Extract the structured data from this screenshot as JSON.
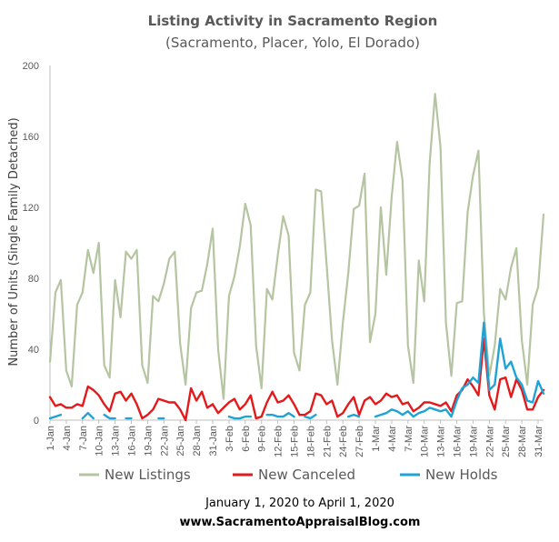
{
  "chart_data": {
    "type": "line",
    "title": "Listing Activity in Sacramento Region",
    "subtitle": "(Sacramento, Placer, Yolo, El Dorado)",
    "ylabel": "Number of Units (Single Family Detached)",
    "xlabel": "January 1, 2020 to April 1, 2020",
    "ylim": [
      0,
      200
    ],
    "yticks": [
      0,
      40,
      80,
      120,
      160,
      200
    ],
    "grid": false,
    "legend_position": "bottom",
    "x_tick_labels": [
      "1-Jan",
      "4-Jan",
      "7-Jan",
      "10-Jan",
      "13-Jan",
      "16-Jan",
      "19-Jan",
      "22-Jan",
      "25-Jan",
      "28-Jan",
      "31-Jan",
      "3-Feb",
      "6-Feb",
      "9-Feb",
      "12-Feb",
      "15-Feb",
      "18-Feb",
      "21-Feb",
      "24-Feb",
      "27-Feb",
      "1-Mar",
      "4-Mar",
      "7-Mar",
      "10-Mar",
      "13-Mar",
      "16-Mar",
      "19-Mar",
      "22-Mar",
      "25-Mar",
      "28-Mar",
      "31-Mar"
    ],
    "series": [
      {
        "name": "New Listings",
        "color": "#b5c4a1",
        "values": [
          33,
          72,
          79,
          28,
          19,
          65,
          72,
          96,
          83,
          100,
          31,
          24,
          79,
          58,
          95,
          91,
          96,
          31,
          21,
          70,
          67,
          77,
          91,
          95,
          43,
          20,
          63,
          72,
          73,
          88,
          108,
          40,
          12,
          70,
          81,
          98,
          122,
          110,
          42,
          18,
          74,
          68,
          93,
          115,
          104,
          38,
          28,
          65,
          72,
          130,
          129,
          88,
          45,
          20,
          55,
          83,
          119,
          121,
          139,
          44,
          60,
          120,
          82,
          126,
          157,
          135,
          42,
          21,
          90,
          67,
          145,
          184,
          154,
          55,
          25,
          66,
          67,
          117,
          138,
          152,
          60,
          25,
          42,
          74,
          68,
          86,
          97,
          45,
          20,
          65,
          75,
          116
        ]
      },
      {
        "name": "New Canceled",
        "color": "#e31a1c",
        "values": [
          13,
          8,
          9,
          7,
          7,
          9,
          8,
          19,
          17,
          14,
          9,
          5,
          15,
          16,
          11,
          15,
          9,
          1,
          3,
          6,
          12,
          11,
          10,
          10,
          6,
          0,
          18,
          11,
          16,
          7,
          9,
          4,
          7,
          10,
          12,
          6,
          9,
          14,
          1,
          2,
          10,
          16,
          10,
          11,
          14,
          9,
          3,
          3,
          5,
          15,
          14,
          9,
          11,
          2,
          4,
          9,
          13,
          3,
          11,
          13,
          9,
          11,
          15,
          13,
          14,
          9,
          10,
          5,
          7,
          10,
          10,
          9,
          8,
          10,
          5,
          14,
          17,
          23,
          19,
          14,
          46,
          14,
          6,
          23,
          24,
          13,
          23,
          17,
          6,
          6,
          13,
          17
        ]
      },
      {
        "name": "New Holds",
        "color": "#1fa3d6",
        "values": [
          1,
          2,
          3,
          null,
          null,
          null,
          1,
          4,
          1,
          null,
          3,
          1,
          1,
          null,
          1,
          1,
          null,
          null,
          null,
          null,
          1,
          1,
          null,
          null,
          null,
          null,
          null,
          null,
          null,
          null,
          null,
          null,
          null,
          2,
          1,
          1,
          2,
          2,
          null,
          null,
          3,
          3,
          2,
          2,
          4,
          2,
          null,
          2,
          1,
          3,
          null,
          null,
          null,
          1,
          null,
          2,
          3,
          2,
          null,
          null,
          2,
          3,
          4,
          6,
          5,
          3,
          5,
          2,
          4,
          5,
          7,
          6,
          5,
          6,
          2,
          11,
          18,
          20,
          24,
          21,
          55,
          17,
          20,
          46,
          29,
          33,
          24,
          20,
          11,
          10,
          22,
          15
        ]
      }
    ]
  },
  "footer": {
    "date_range": "January 1, 2020 to April 1, 2020",
    "website": "www.SacramentoAppraisalBlog.com"
  }
}
